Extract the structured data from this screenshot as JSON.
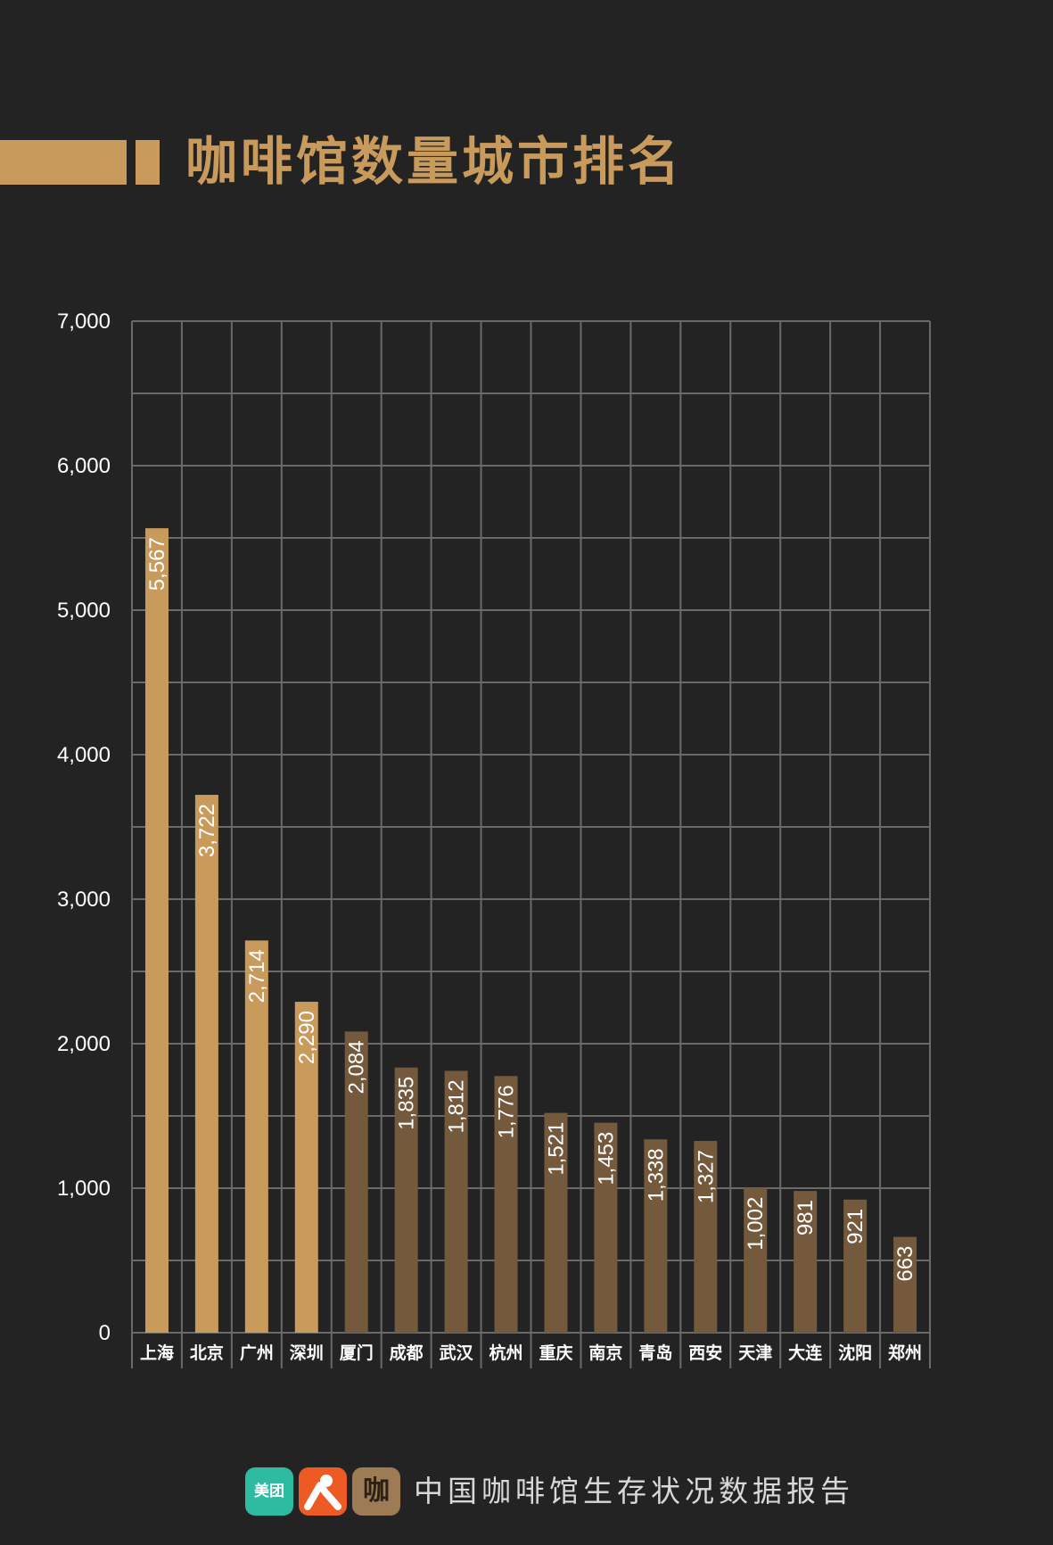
{
  "title": "咖啡馆数量城市排名",
  "footer": {
    "text": "中国咖啡馆生存状况数据报告",
    "logo_meituan": "美团",
    "logo_kafei": "咖"
  },
  "colors": {
    "background": "#232323",
    "accent": "#c89a5c",
    "bar_highlight": "#c89a5c",
    "bar_other": "#74593c",
    "grid": "#6a6a6a",
    "text": "#ffffff"
  },
  "chart_data": {
    "type": "bar",
    "categories": [
      "上海",
      "北京",
      "广州",
      "深圳",
      "厦门",
      "成都",
      "武汉",
      "杭州",
      "重庆",
      "南京",
      "青岛",
      "西安",
      "天津",
      "大连",
      "沈阳",
      "郑州"
    ],
    "values": [
      5567,
      3722,
      2714,
      2290,
      2084,
      1835,
      1812,
      1776,
      1521,
      1453,
      1338,
      1327,
      1002,
      981,
      921,
      663
    ],
    "value_labels": [
      "5,567",
      "3,722",
      "2,714",
      "2,290",
      "2,084",
      "1,835",
      "1,812",
      "1,776",
      "1,521",
      "1,453",
      "1,338",
      "1,327",
      "1,002",
      "981",
      "921",
      "663"
    ],
    "highlight_count": 4,
    "yticks": [
      0,
      1000,
      2000,
      3000,
      4000,
      5000,
      6000,
      7000
    ],
    "ytick_labels": [
      "0",
      "1,000",
      "2,000",
      "3,000",
      "4,000",
      "5,000",
      "6,000",
      "7,000"
    ],
    "ylim": [
      0,
      7000
    ],
    "grid": true,
    "xlabel": "",
    "ylabel": ""
  }
}
